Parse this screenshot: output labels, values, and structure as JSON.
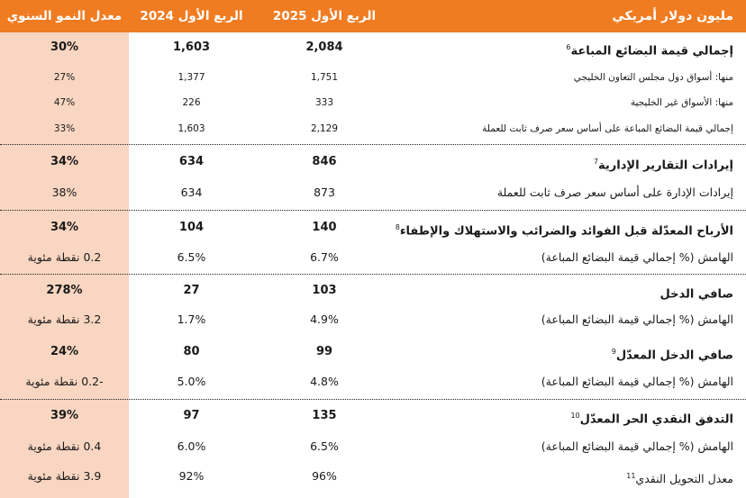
{
  "header": {
    "label": "مليون دولار أمريكي",
    "q1_2025": "الربع الأول 2025",
    "q1_2024": "الربع الأول 2024",
    "growth": "معدل النمو السنوي"
  },
  "rows": [
    {
      "label": "إجمالي قيمة البضائع المباعة",
      "sup": "6",
      "v25": "2,084",
      "v24": "1,603",
      "growth": "30%"
    },
    {
      "label": "منها: أسواق دول مجلس التعاون الخليجي",
      "sup": "",
      "v25": "1,751",
      "v24": "1,377",
      "growth": "27%"
    },
    {
      "label": "منها: الأسواق غير الخليجية",
      "sup": "",
      "v25": "333",
      "v24": "226",
      "growth": "47%"
    },
    {
      "label": "إجمالي قيمة البضائع المباعة على أساس سعر صرف ثابت للعملة",
      "sup": "",
      "v25": "2,129",
      "v24": "1,603",
      "growth": "33%"
    },
    {
      "label": "إيرادات التقارير الإدارية",
      "sup": "7",
      "v25": "846",
      "v24": "634",
      "growth": "34%"
    },
    {
      "label": "إيرادات الإدارة على أساس سعر صرف ثابت للعملة",
      "sup": "",
      "v25": "873",
      "v24": "634",
      "growth": "38%"
    },
    {
      "label": "الأرباح المعدّلة قبل الفوائد والضرائب والاستهلاك والإطفاء",
      "sup": "8",
      "v25": "140",
      "v24": "104",
      "growth": "34%"
    },
    {
      "label": "الهامش (% إجمالي قيمة البضائع المباعة)",
      "sup": "",
      "v25": "6.7%",
      "v24": "6.5%",
      "growth": "0.2 نقطة مئوية"
    },
    {
      "label": "صافي الدخل",
      "sup": "",
      "v25": "103",
      "v24": "27",
      "growth": "278%"
    },
    {
      "label": "الهامش (% إجمالي قيمة البضائع المباعة)",
      "sup": "",
      "v25": "4.9%",
      "v24": "1.7%",
      "growth": "3.2 نقطة مئوية"
    },
    {
      "label": "صافي الدخل المعدّل",
      "sup": "9",
      "v25": "99",
      "v24": "80",
      "growth": "24%"
    },
    {
      "label": "الهامش (% إجمالي قيمة البضائع المباعة)",
      "sup": "",
      "v25": "4.8%",
      "v24": "5.0%",
      "growth": "-0.2 نقطة مئوية"
    },
    {
      "label": "التدفق النقدي الحر المعدّل",
      "sup": "10",
      "v25": "135",
      "v24": "97",
      "growth": "39%"
    },
    {
      "label": "الهامش (% إجمالي قيمة البضائع المباعة)",
      "sup": "",
      "v25": "6.5%",
      "v24": "6.0%",
      "growth": "0.4 نقطة مئوية"
    },
    {
      "label": "معدل التحويل النقدي",
      "sup": "11",
      "v25": "96%",
      "v24": "92%",
      "growth": "3.9 نقطة مئوية"
    }
  ]
}
